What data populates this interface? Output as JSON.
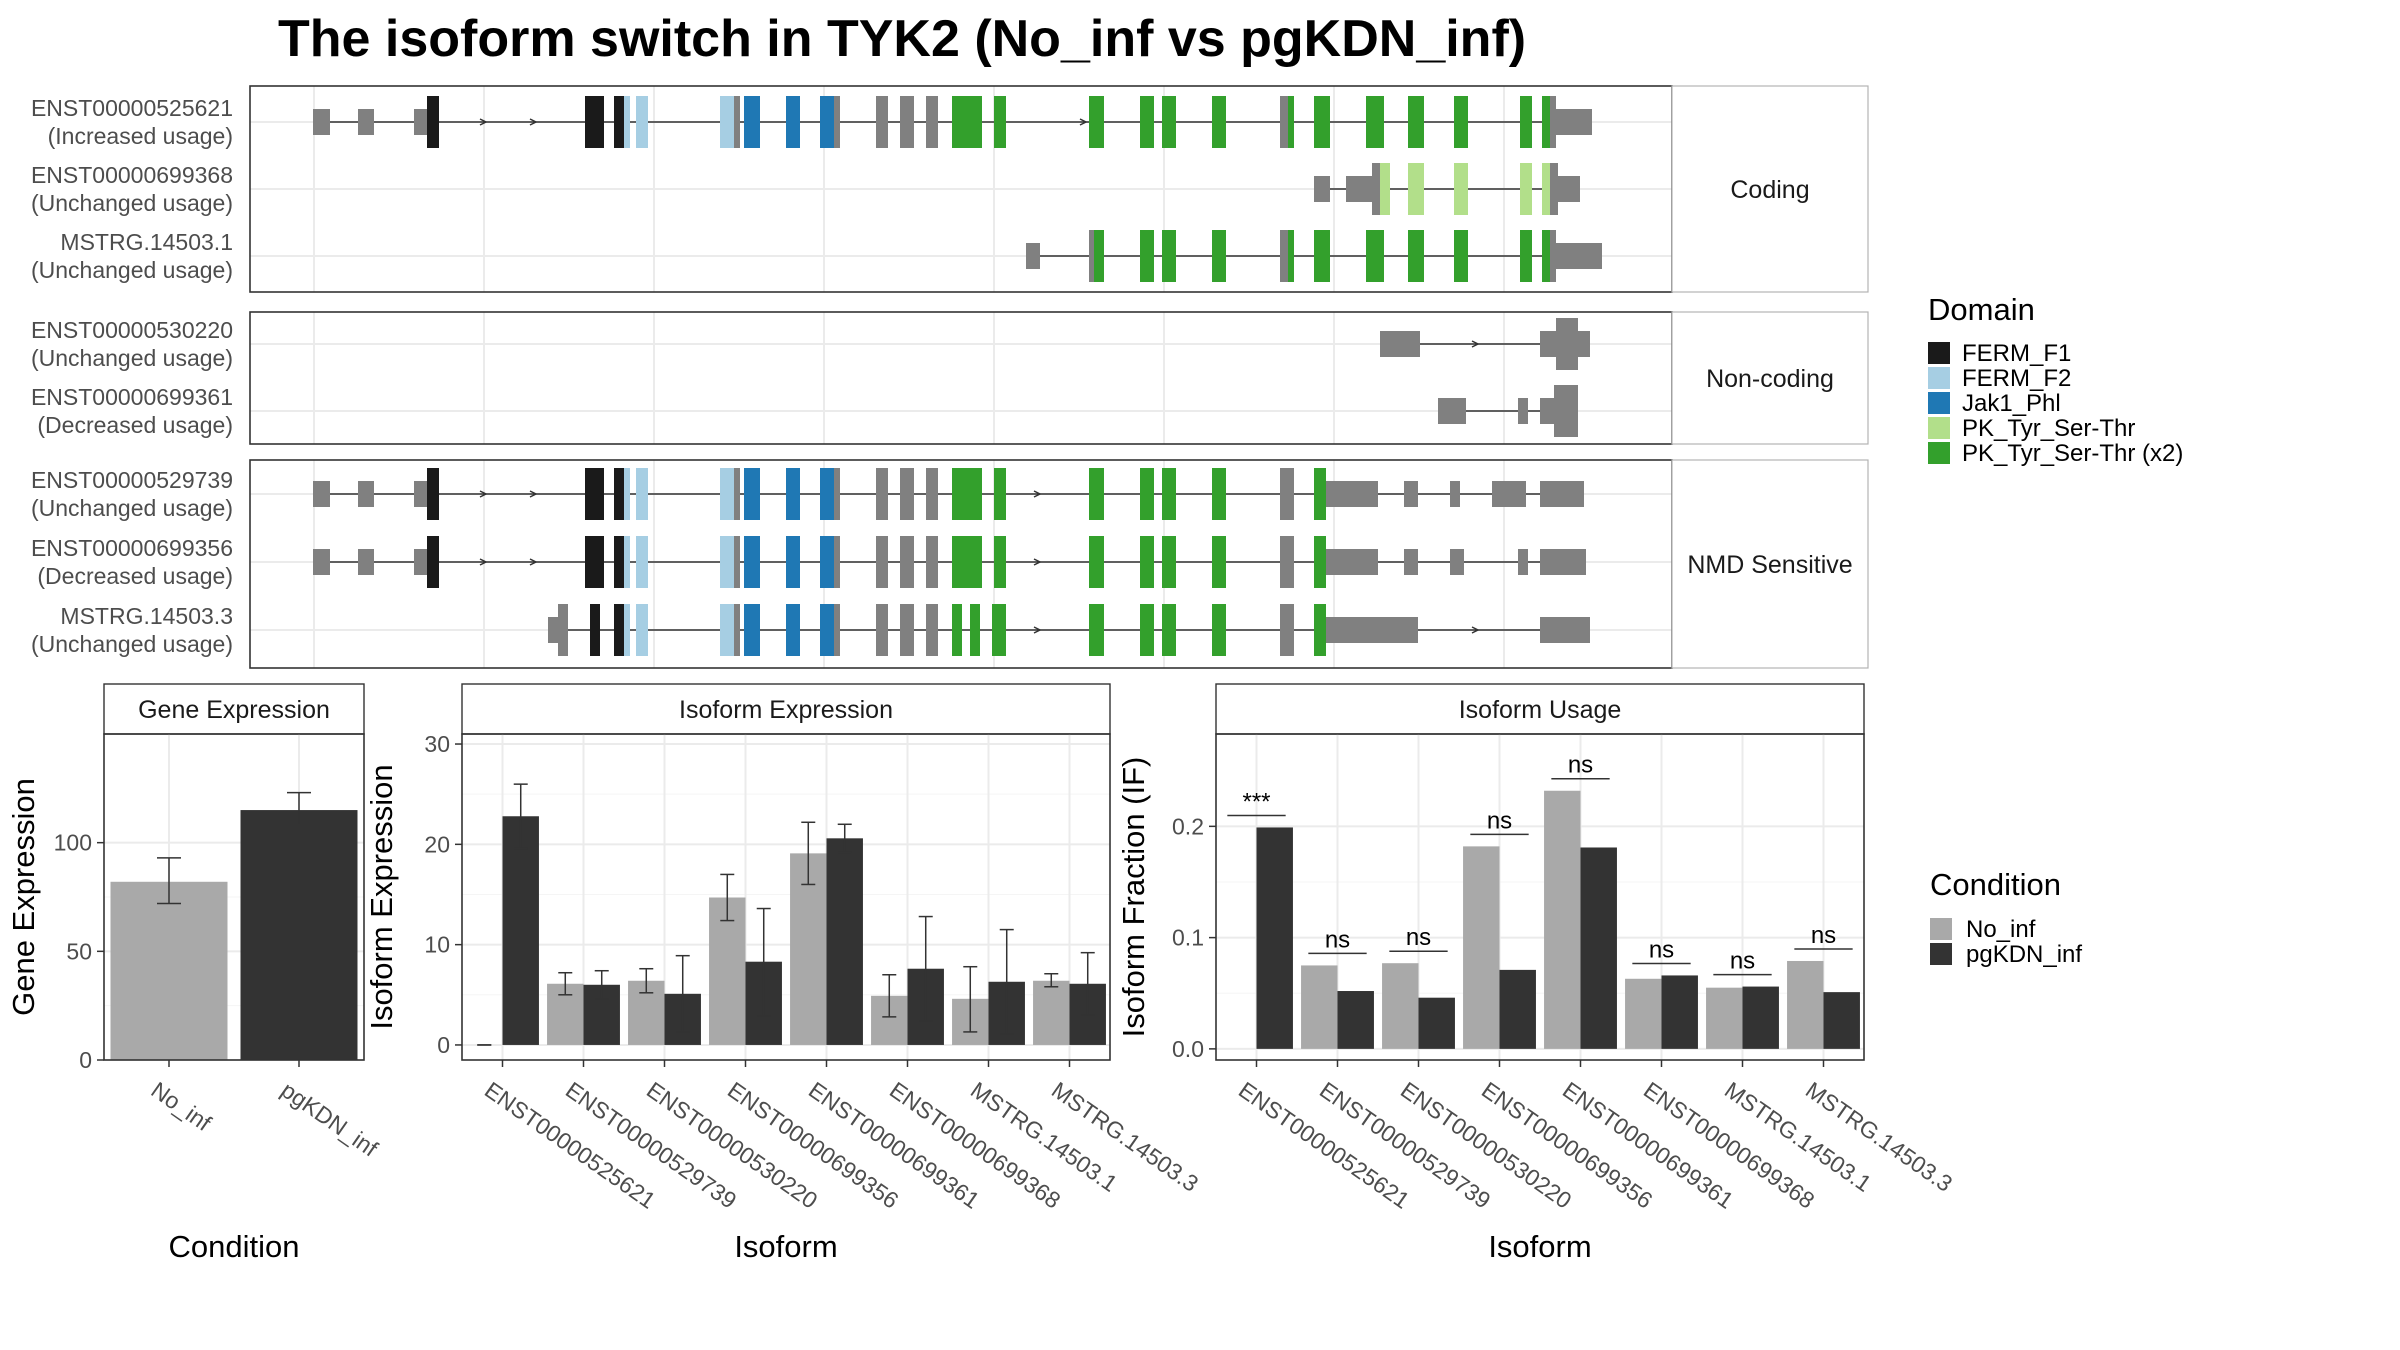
{
  "title": "The isoform switch in TYK2 (No_inf vs pgKDN_inf)",
  "colors": {
    "no_inf": "#a9a9a9",
    "pgkdn_inf": "#333333",
    "utr": "#808080",
    "FERM_F1": "#1a1a1a",
    "FERM_F2": "#a6cee3",
    "Jak1_Phl": "#1f78b4",
    "PK_Tyr_Ser-Thr": "#b2df8a",
    "PK_Tyr_Ser-Thr (x2)": "#33a02c"
  },
  "structure_panels": [
    {
      "label": "Coding",
      "isoforms": [
        {
          "id": "ENST00000525621",
          "usage": "(Increased usage)"
        },
        {
          "id": "ENST00000699368",
          "usage": "(Unchanged usage)"
        },
        {
          "id": "MSTRG.14503.1",
          "usage": "(Unchanged usage)"
        }
      ]
    },
    {
      "label": "Non-coding",
      "isoforms": [
        {
          "id": "ENST00000530220",
          "usage": "(Unchanged usage)"
        },
        {
          "id": "ENST00000699361",
          "usage": "(Decreased usage)"
        }
      ]
    },
    {
      "label": "NMD Sensitive",
      "isoforms": [
        {
          "id": "ENST00000529739",
          "usage": "(Unchanged usage)"
        },
        {
          "id": "ENST00000699356",
          "usage": "(Decreased usage)"
        },
        {
          "id": "MSTRG.14503.3",
          "usage": "(Unchanged usage)"
        }
      ]
    }
  ],
  "legend_domain": {
    "title": "Domain",
    "items": [
      "FERM_F1",
      "FERM_F2",
      "Jak1_Phl",
      "PK_Tyr_Ser-Thr",
      "PK_Tyr_Ser-Thr (x2)"
    ]
  },
  "legend_condition": {
    "title": "Condition",
    "items": [
      "No_inf",
      "pgKDN_inf"
    ]
  },
  "chart_data": [
    {
      "type": "bar",
      "title": "Gene Expression",
      "xlabel": "Condition",
      "ylabel": "Gene Expression",
      "categories": [
        "No_inf",
        "pgKDN_inf"
      ],
      "values": [
        82,
        115
      ],
      "errors": [
        [
          72,
          93
        ],
        [
          108,
          123
        ]
      ],
      "ylim": [
        0,
        150
      ],
      "yticks": [
        0,
        50,
        100
      ]
    },
    {
      "type": "bar",
      "title": "Isoform Expression",
      "xlabel": "Isoform",
      "ylabel": "Isoform Expression",
      "categories": [
        "ENST00000525621",
        "ENST00000529739",
        "ENST00000530220",
        "ENST00000699356",
        "ENST00000699361",
        "ENST00000699368",
        "MSTRG.14503.1",
        "MSTRG.14503.3"
      ],
      "series": [
        {
          "name": "No_inf",
          "values": [
            0,
            6.1,
            6.4,
            14.7,
            19.1,
            4.9,
            4.6,
            6.4
          ],
          "errors": [
            [
              0,
              0
            ],
            [
              5.0,
              7.2
            ],
            [
              5.2,
              7.6
            ],
            [
              12.4,
              17.0
            ],
            [
              16.0,
              22.2
            ],
            [
              2.8,
              7.0
            ],
            [
              1.3,
              7.8
            ],
            [
              5.8,
              7.1
            ]
          ]
        },
        {
          "name": "pgKDN_inf",
          "values": [
            22.8,
            6.0,
            5.1,
            8.3,
            20.6,
            7.6,
            6.3,
            6.1
          ],
          "errors": [
            [
              19.6,
              26.0
            ],
            [
              4.6,
              7.4
            ],
            [
              1.3,
              8.9
            ],
            [
              2.9,
              13.6
            ],
            [
              19.2,
              22.0
            ],
            [
              2.4,
              12.8
            ],
            [
              1.1,
              11.5
            ],
            [
              3.0,
              9.2
            ]
          ]
        }
      ],
      "ylim": [
        -1.5,
        31
      ],
      "yticks": [
        0,
        10,
        20,
        30
      ]
    },
    {
      "type": "bar",
      "title": "Isoform Usage",
      "xlabel": "Isoform",
      "ylabel": "Isoform Fraction (IF)",
      "categories": [
        "ENST00000525621",
        "ENST00000529739",
        "ENST00000530220",
        "ENST00000699356",
        "ENST00000699361",
        "ENST00000699368",
        "MSTRG.14503.1",
        "MSTRG.14503.3"
      ],
      "series": [
        {
          "name": "No_inf",
          "values": [
            0,
            0.075,
            0.077,
            0.182,
            0.232,
            0.063,
            0.055,
            0.079
          ]
        },
        {
          "name": "pgKDN_inf",
          "values": [
            0.199,
            0.052,
            0.046,
            0.071,
            0.181,
            0.066,
            0.056,
            0.051
          ]
        }
      ],
      "significance": [
        "***",
        "ns",
        "ns",
        "ns",
        "ns",
        "ns",
        "ns",
        "ns"
      ],
      "ylim": [
        -0.01,
        0.283
      ],
      "yticks": [
        0.0,
        0.1,
        0.2
      ],
      "ytick_labels": [
        "0.0",
        "0.1",
        "0.2"
      ]
    }
  ]
}
